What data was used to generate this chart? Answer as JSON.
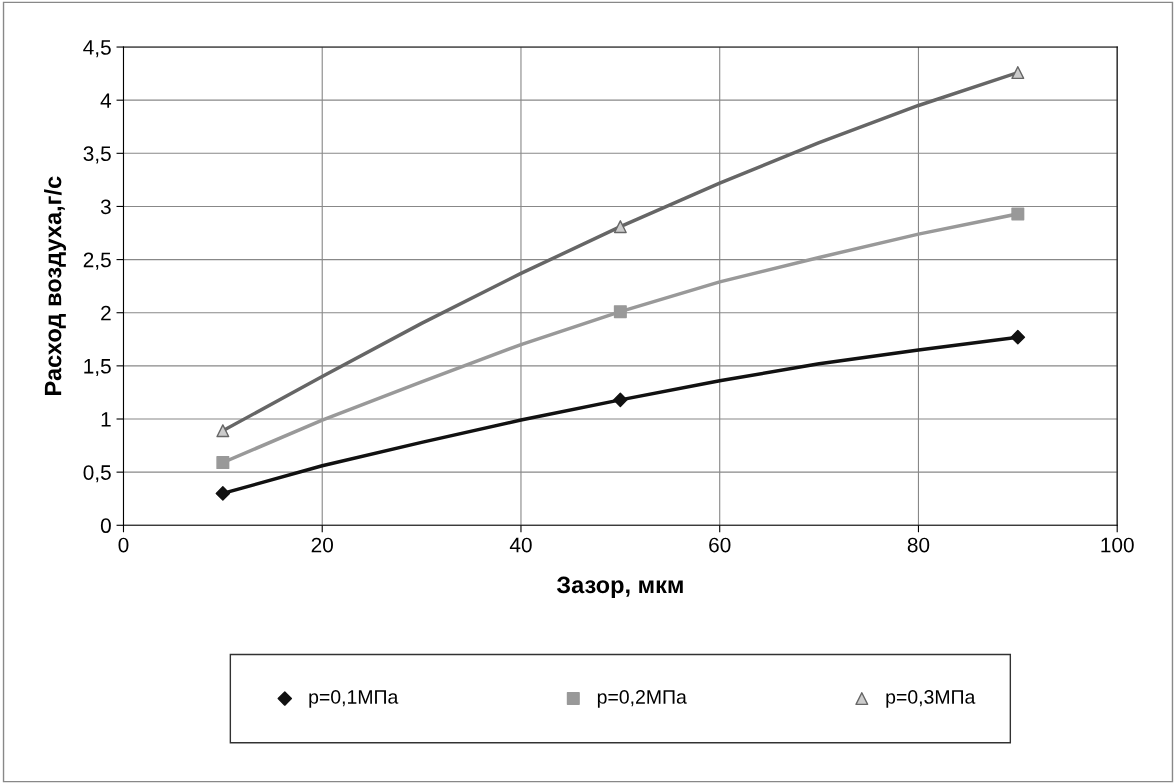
{
  "chart_data": {
    "type": "line",
    "xlabel": "Зазор, мкм",
    "ylabel": "Расход воздуха,г/с",
    "x": [
      10,
      50,
      90
    ],
    "series": [
      {
        "color": "#111111",
        "x": [
          10,
          20,
          30,
          40,
          50,
          60,
          70,
          80,
          90
        ],
        "values": [
          0.3,
          0.56,
          0.78,
          0.99,
          1.18,
          1.36,
          1.52,
          1.65,
          1.77
        ]
      },
      {
        "color": "#999999",
        "x": [
          10,
          20,
          30,
          40,
          50,
          60,
          70,
          80,
          90
        ],
        "values": [
          0.59,
          0.99,
          1.35,
          1.7,
          2.01,
          2.29,
          2.52,
          2.74,
          2.93
        ]
      },
      {
        "color": "#666666",
        "x": [
          10,
          20,
          30,
          40,
          50,
          60,
          70,
          80,
          90
        ],
        "values": [
          0.89,
          1.4,
          1.9,
          2.37,
          2.81,
          3.22,
          3.6,
          3.95,
          4.26
        ]
      },
      {
        "type": "scatter",
        "name": "p=0,1МПа",
        "color": "#111111",
        "marker": "diamond",
        "values": [
          0.3,
          1.18,
          1.77
        ]
      },
      {
        "type": "scatter",
        "name": "p=0,2МПа",
        "color": "#999999",
        "marker": "square",
        "values": [
          0.59,
          2.01,
          2.93
        ]
      },
      {
        "type": "scatter",
        "name": "p=0,3МПа",
        "color": "#666666",
        "marker": "triangle",
        "values": [
          0.89,
          2.81,
          4.26
        ]
      }
    ],
    "xlim": [
      0,
      100
    ],
    "xticks": [
      0,
      20,
      40,
      60,
      80,
      100
    ],
    "ylim": [
      0,
      4.5
    ],
    "yticks": [
      {
        "value": 0,
        "label": "0"
      },
      {
        "value": 0.5,
        "label": "0,5"
      },
      {
        "value": 1,
        "label": "1"
      },
      {
        "value": 1.5,
        "label": "1,5"
      },
      {
        "value": 2,
        "label": "2"
      },
      {
        "value": 2.5,
        "label": "2,5"
      },
      {
        "value": 3,
        "label": "3"
      },
      {
        "value": 3.5,
        "label": "3,5"
      },
      {
        "value": 4,
        "label": "4"
      },
      {
        "value": 4.5,
        "label": "4,5"
      }
    ],
    "grid": true,
    "legend": "bottom",
    "line_style": "solid"
  }
}
